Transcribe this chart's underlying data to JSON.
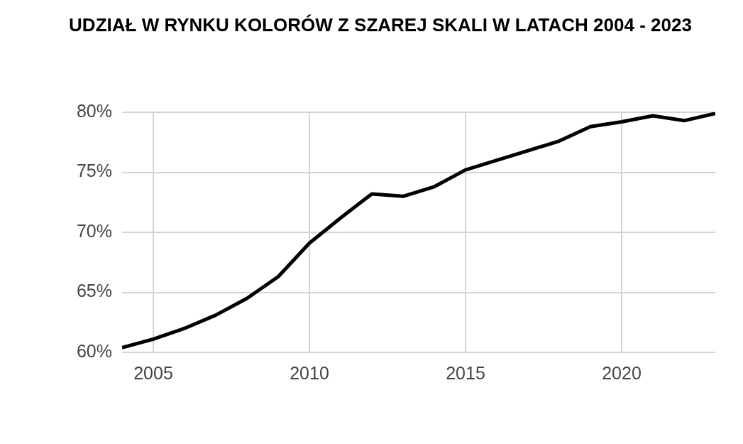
{
  "chart_data": {
    "type": "line",
    "title": "UDZIAŁ W RYNKU KOLORÓW Z SZAREJ SKALI W LATACH 2004 - 2023",
    "x": [
      2004,
      2005,
      2006,
      2007,
      2008,
      2009,
      2010,
      2011,
      2012,
      2013,
      2014,
      2015,
      2016,
      2017,
      2018,
      2019,
      2020,
      2021,
      2022,
      2023
    ],
    "series": [
      {
        "color": "#000000",
        "values": [
          60.4,
          61.1,
          62.0,
          63.1,
          64.5,
          66.3,
          69.1,
          71.2,
          73.2,
          73.0,
          73.8,
          75.2,
          76.0,
          76.8,
          77.6,
          78.8,
          79.2,
          79.7,
          79.3,
          79.9
        ]
      }
    ],
    "xlim": [
      2004,
      2023
    ],
    "xticks": [
      2005,
      2010,
      2015,
      2020
    ],
    "ylim": [
      60,
      80
    ],
    "yticks": [
      {
        "value": 60,
        "label": "60%"
      },
      {
        "value": 65,
        "label": "65%"
      },
      {
        "value": 70,
        "label": "70%"
      },
      {
        "value": 75,
        "label": "75%"
      },
      {
        "value": 80,
        "label": "80%"
      }
    ],
    "grid": true,
    "marker": "none"
  }
}
